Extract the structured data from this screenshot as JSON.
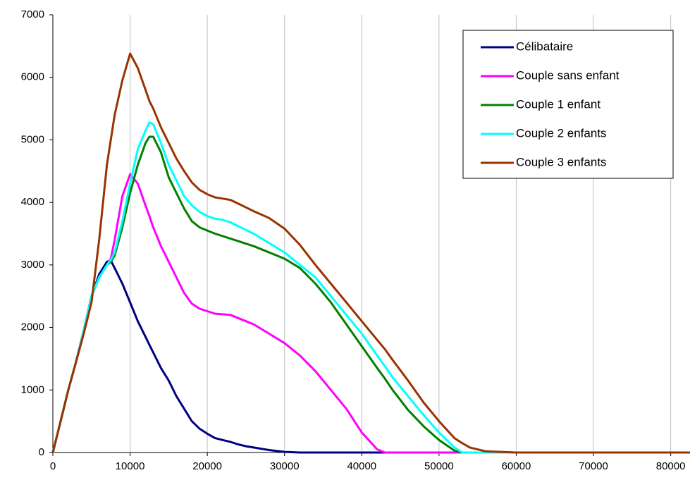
{
  "chart_data": {
    "type": "line",
    "x": [
      0,
      1000,
      2000,
      3000,
      4000,
      5000,
      6000,
      7000,
      7500,
      8000,
      9000,
      10000,
      11000,
      12000,
      12500,
      13000,
      14000,
      15000,
      16000,
      17000,
      18000,
      19000,
      20000,
      21000,
      22000,
      23000,
      24000,
      25000,
      26000,
      28000,
      30000,
      32000,
      34000,
      36000,
      38000,
      40000,
      42000,
      43000,
      44000,
      46000,
      48000,
      50000,
      52000,
      53000,
      54000,
      56000,
      60000,
      70000,
      82500
    ],
    "series": [
      {
        "name": "Célibataire",
        "color": "#000080",
        "values": [
          0,
          500,
          1000,
          1450,
          1950,
          2500,
          2850,
          3050,
          3070,
          2950,
          2700,
          2400,
          2100,
          1850,
          1720,
          1600,
          1350,
          1150,
          900,
          700,
          500,
          380,
          300,
          230,
          200,
          170,
          130,
          100,
          80,
          40,
          10,
          0,
          0,
          0,
          0,
          0,
          0,
          0,
          0,
          0,
          0,
          0,
          0,
          0,
          0,
          0,
          0,
          0,
          0
        ]
      },
      {
        "name": "Couple sans enfant",
        "color": "#ff00ff",
        "values": [
          0,
          500,
          1000,
          1450,
          1950,
          2500,
          2800,
          3000,
          3100,
          3400,
          4100,
          4450,
          4300,
          3950,
          3780,
          3600,
          3300,
          3050,
          2800,
          2550,
          2380,
          2300,
          2260,
          2220,
          2210,
          2200,
          2150,
          2100,
          2050,
          1900,
          1750,
          1550,
          1300,
          1000,
          700,
          320,
          50,
          0,
          0,
          0,
          0,
          0,
          0,
          0,
          0,
          0,
          0,
          0,
          0
        ]
      },
      {
        "name": "Couple 1 enfant",
        "color": "#008000",
        "values": [
          0,
          500,
          1000,
          1450,
          1950,
          2500,
          2800,
          3000,
          3050,
          3150,
          3600,
          4150,
          4600,
          4950,
          5050,
          5050,
          4800,
          4400,
          4150,
          3900,
          3700,
          3600,
          3550,
          3500,
          3460,
          3420,
          3380,
          3340,
          3300,
          3200,
          3100,
          2950,
          2700,
          2400,
          2050,
          1700,
          1350,
          1180,
          1000,
          680,
          420,
          200,
          30,
          0,
          0,
          0,
          0,
          0,
          0
        ]
      },
      {
        "name": "Couple 2 enfants",
        "color": "#00ffff",
        "values": [
          0,
          500,
          1000,
          1450,
          1950,
          2500,
          2800,
          3000,
          3080,
          3200,
          3700,
          4300,
          4850,
          5150,
          5280,
          5250,
          4950,
          4600,
          4350,
          4100,
          3950,
          3850,
          3780,
          3740,
          3720,
          3680,
          3620,
          3560,
          3500,
          3350,
          3200,
          3000,
          2800,
          2500,
          2200,
          1900,
          1550,
          1380,
          1200,
          900,
          600,
          320,
          80,
          0,
          0,
          0,
          0,
          0,
          0
        ]
      },
      {
        "name": "Couple 3 enfants",
        "color": "#993300",
        "values": [
          0,
          500,
          1000,
          1450,
          1900,
          2400,
          3400,
          4600,
          5000,
          5400,
          5950,
          6380,
          6150,
          5800,
          5620,
          5500,
          5200,
          4950,
          4700,
          4500,
          4320,
          4200,
          4130,
          4080,
          4060,
          4040,
          3980,
          3920,
          3860,
          3750,
          3580,
          3320,
          3000,
          2700,
          2400,
          2100,
          1800,
          1650,
          1480,
          1150,
          800,
          500,
          230,
          150,
          80,
          20,
          0,
          0,
          0
        ]
      }
    ],
    "xlim": [
      0,
      82500
    ],
    "xticks": [
      0,
      10000,
      20000,
      30000,
      40000,
      50000,
      60000,
      70000,
      80000
    ],
    "ylim": [
      0,
      7000
    ],
    "yticks": [
      0,
      1000,
      2000,
      3000,
      4000,
      5000,
      6000,
      7000
    ],
    "grid": "x",
    "legend": "upper right"
  }
}
